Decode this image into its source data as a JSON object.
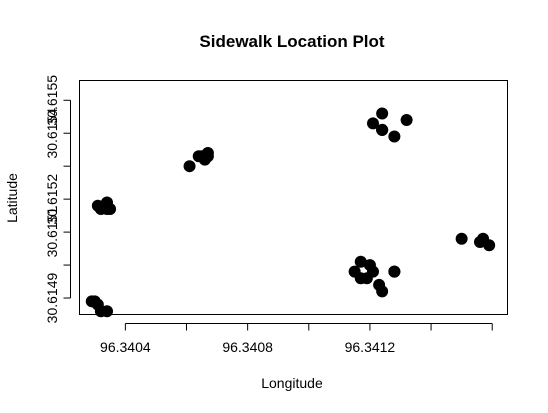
{
  "chart_data": {
    "type": "scatter",
    "title": "Sidewalk Location Plot",
    "xlabel": "Longitude",
    "ylabel": "Latitude",
    "xlim": [
      96.34025,
      96.34165
    ],
    "ylim": [
      30.61485,
      30.61556
    ],
    "x_ticks": [
      96.3402,
      96.3404,
      96.3406,
      96.3408,
      96.341,
      96.3412,
      96.3414,
      96.3416
    ],
    "x_tick_labels": [
      "",
      "96.3404",
      "",
      "96.3408",
      "",
      "96.3412",
      "",
      ""
    ],
    "y_ticks": [
      30.6149,
      30.615,
      30.6151,
      30.6152,
      30.6153,
      30.6154,
      30.6155
    ],
    "y_tick_labels": [
      "30.6149",
      "",
      "30.6151",
      "30.6152",
      "",
      "30.6154",
      "30.6155"
    ],
    "grid": false,
    "legend": "none",
    "point_color": "#000000",
    "x": [
      96.34029,
      96.3403,
      96.34031,
      96.34032,
      96.34034,
      96.34031,
      96.34032,
      96.34033,
      96.34034,
      96.34034,
      96.34035,
      96.34061,
      96.34064,
      96.34065,
      96.34066,
      96.34067,
      96.34067,
      96.34115,
      96.34117,
      96.34117,
      96.34119,
      96.3412,
      96.34121,
      96.34123,
      96.34124,
      96.34128,
      96.34128,
      96.34121,
      96.34124,
      96.34124,
      96.34128,
      96.34132,
      96.34124,
      96.34124,
      96.3415,
      96.34156,
      96.34157,
      96.34159
    ],
    "y": [
      30.61489,
      30.61489,
      30.61488,
      30.61486,
      30.61486,
      30.61518,
      30.61517,
      30.61518,
      30.61517,
      30.61519,
      30.61517,
      30.6153,
      30.61533,
      30.61533,
      30.61532,
      30.61534,
      30.61533,
      30.61498,
      30.61496,
      30.61501,
      30.61496,
      30.615,
      30.61498,
      30.61494,
      30.61492,
      30.61498,
      30.61498,
      30.61543,
      30.61546,
      30.61541,
      30.61539,
      30.61544,
      30.61541,
      30.61541,
      30.61508,
      30.61507,
      30.61508,
      30.61506
    ]
  }
}
